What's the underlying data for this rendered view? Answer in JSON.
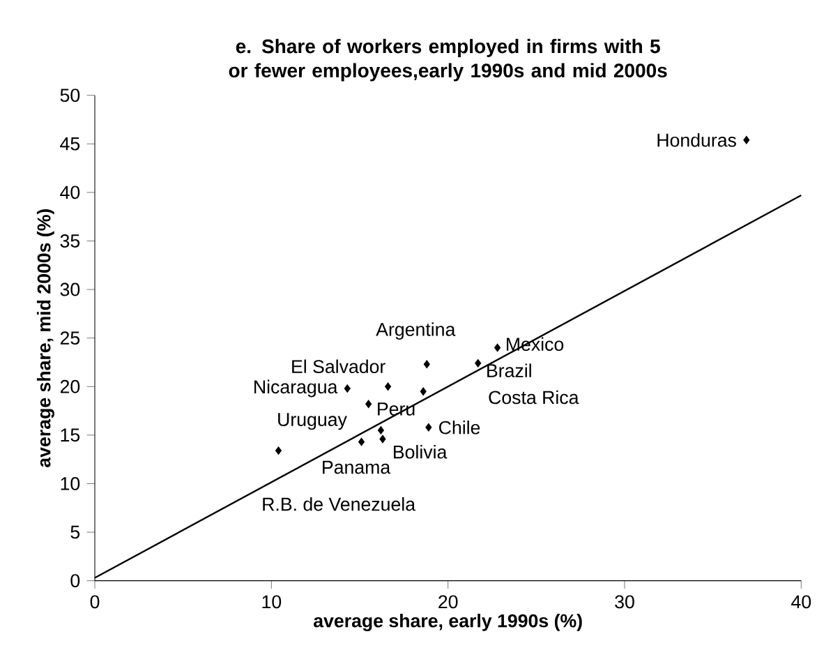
{
  "chart_data": {
    "type": "scatter",
    "title": "e. Share of workers employed in firms with 5 or fewer employees,early 1990s and mid 2000s",
    "xlabel": "average share, early 1990s (%)",
    "ylabel": "average share, mid 2000s (%)",
    "xlim": [
      0,
      40
    ],
    "xticks": [
      0,
      10,
      20,
      30,
      40
    ],
    "ylim": [
      0,
      50
    ],
    "yticks": [
      0,
      5,
      10,
      15,
      20,
      25,
      30,
      35,
      40,
      45,
      50
    ],
    "marker": "diamond",
    "series": [
      {
        "color": "#000000",
        "x": [
          36.9,
          22.8,
          21.7,
          18.6,
          18.8,
          16.6,
          14.3,
          10.4,
          15.5,
          18.9,
          16.3,
          15.1,
          16.2
        ],
        "values": [
          45.4,
          24.0,
          22.4,
          19.5,
          22.3,
          20.0,
          19.8,
          13.4,
          18.2,
          15.8,
          14.6,
          14.3,
          15.5
        ]
      },
      {
        "type": "line",
        "color": "#000000",
        "line_style": "solid",
        "marker": "none",
        "x": [
          0,
          40
        ],
        "values": [
          0.3,
          39.7
        ]
      }
    ],
    "annotations": [
      {
        "text": "Honduras",
        "x": 36.9,
        "y": 45.4
      },
      {
        "text": "Mexico",
        "x": 22.8,
        "y": 24.0
      },
      {
        "text": "Brazil",
        "x": 21.7,
        "y": 22.4
      },
      "Costa Rica",
      {
        "text": "Argentina",
        "x": 18.8,
        "y": 22.3
      },
      {
        "text": "El Salvador",
        "x": 16.6,
        "y": 20.0
      },
      {
        "text": "Nicaragua",
        "x": 14.3,
        "y": 19.8
      },
      {
        "text": "Uruguay",
        "x": 10.4,
        "y": 13.4
      },
      {
        "text": "Peru",
        "x": 15.5,
        "y": 18.2
      },
      {
        "text": "Chile",
        "x": 18.9,
        "y": 15.8
      },
      {
        "text": "Bolivia",
        "x": 16.3,
        "y": 14.6
      },
      {
        "text": "Panama",
        "x": 15.1,
        "y": 14.3
      },
      "R.B. de Venezuela"
    ]
  }
}
